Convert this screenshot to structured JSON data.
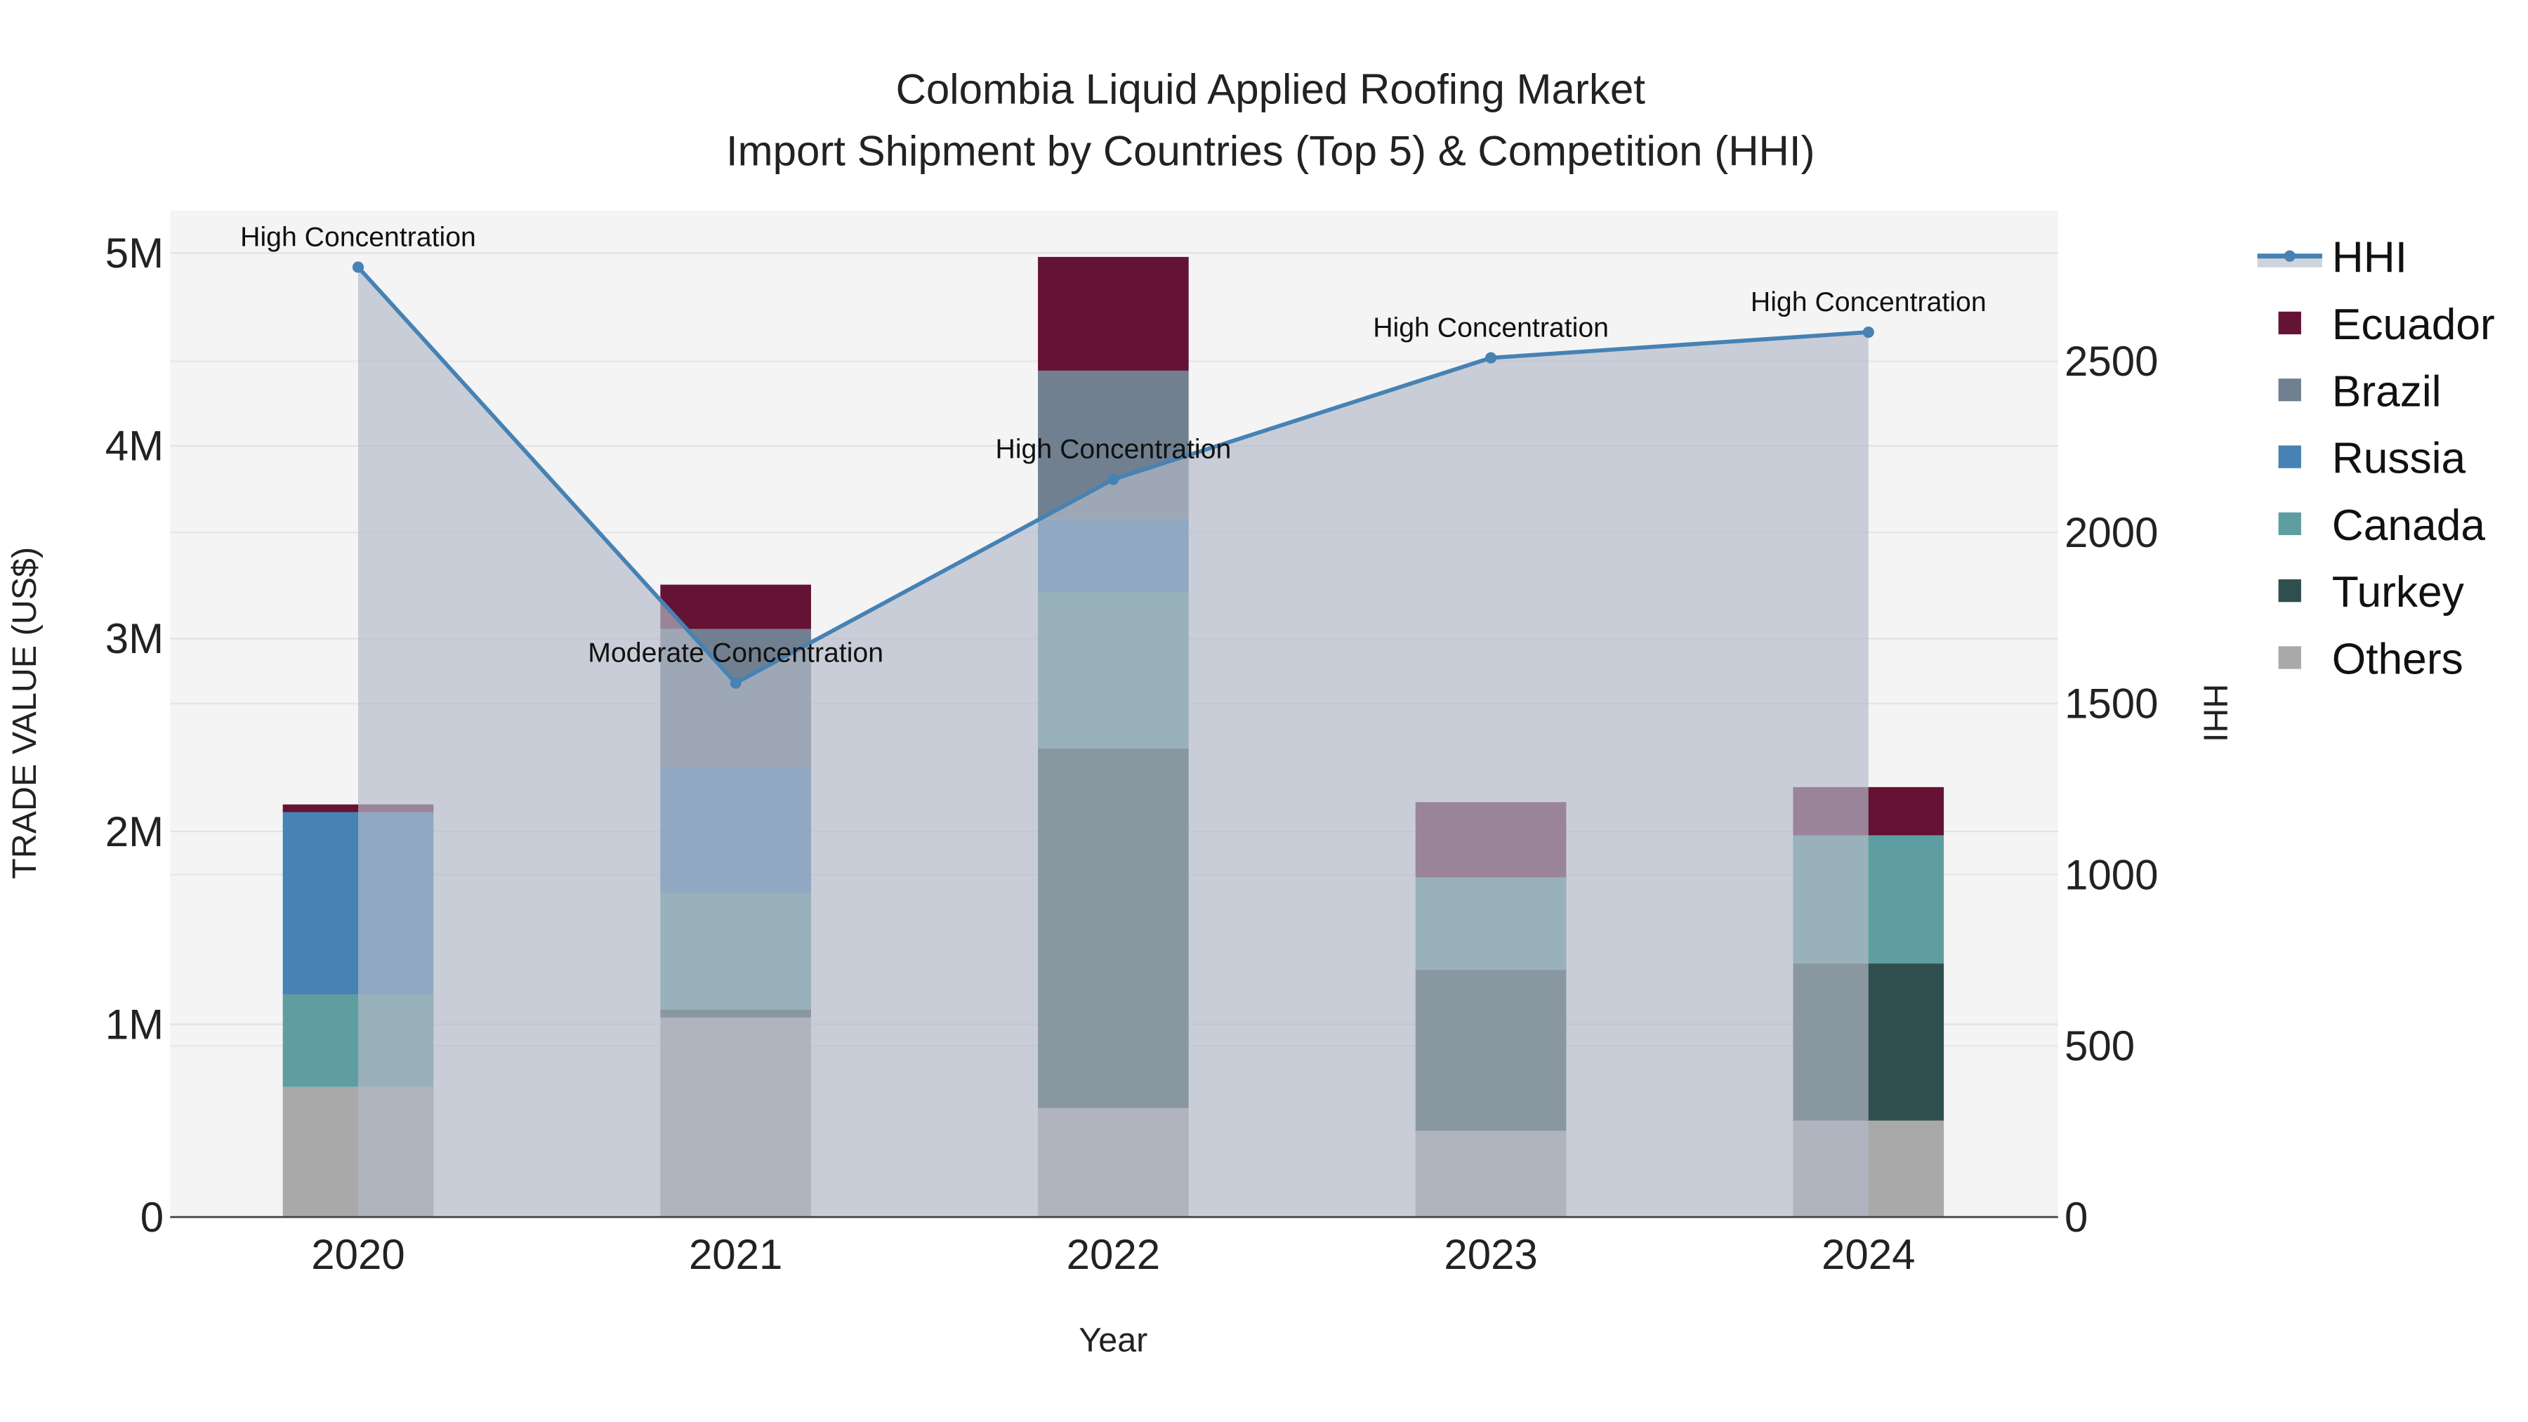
{
  "chart_data": {
    "type": "bar",
    "title": "Colombia Liquid Applied Roofing Market",
    "subtitle": "Import Shipment by Countries (Top 5) & Competition (HHI)",
    "xlabel": "Year",
    "ylabel": "TRADE VALUE (US$)",
    "y2label": "HHI",
    "categories": [
      "2020",
      "2021",
      "2022",
      "2023",
      "2024"
    ],
    "ylim": [
      0,
      5220000
    ],
    "y2lim": [
      0,
      2940
    ],
    "yticks": [
      {
        "v": 0,
        "label": "0"
      },
      {
        "v": 1000000,
        "label": "1M"
      },
      {
        "v": 2000000,
        "label": "2M"
      },
      {
        "v": 3000000,
        "label": "3M"
      },
      {
        "v": 4000000,
        "label": "4M"
      },
      {
        "v": 5000000,
        "label": "5M"
      }
    ],
    "y2ticks": [
      0,
      500,
      1000,
      1500,
      2000,
      2500
    ],
    "series": [
      {
        "name": "Others",
        "color": "#a9a9a9",
        "values": [
          675000,
          1035000,
          565000,
          447000,
          500000
        ]
      },
      {
        "name": "Turkey",
        "color": "#2f4f4f",
        "values": [
          0,
          40000,
          1865000,
          835000,
          815000
        ]
      },
      {
        "name": "Canada",
        "color": "#5f9ea0",
        "values": [
          480000,
          605000,
          810000,
          480000,
          665000
        ]
      },
      {
        "name": "Russia",
        "color": "#4682b4",
        "values": [
          945000,
          650000,
          380000,
          0,
          0
        ]
      },
      {
        "name": "Brazil",
        "color": "#708090",
        "values": [
          0,
          720000,
          770000,
          0,
          0
        ]
      },
      {
        "name": "Ecuador",
        "color": "#641335",
        "values": [
          40000,
          230000,
          590000,
          390000,
          250000
        ]
      }
    ],
    "hhi": {
      "name": "HHI",
      "color": "#4682b4",
      "values": [
        2775,
        1560,
        2155,
        2510,
        2585
      ],
      "labels": [
        "High Concentration",
        "Moderate Concentration",
        "High Concentration",
        "High Concentration",
        "High Concentration"
      ]
    },
    "legend_order": [
      "HHI",
      "Ecuador",
      "Brazil",
      "Russia",
      "Canada",
      "Turkey",
      "Others"
    ],
    "legend_position": "right",
    "grid": true
  }
}
